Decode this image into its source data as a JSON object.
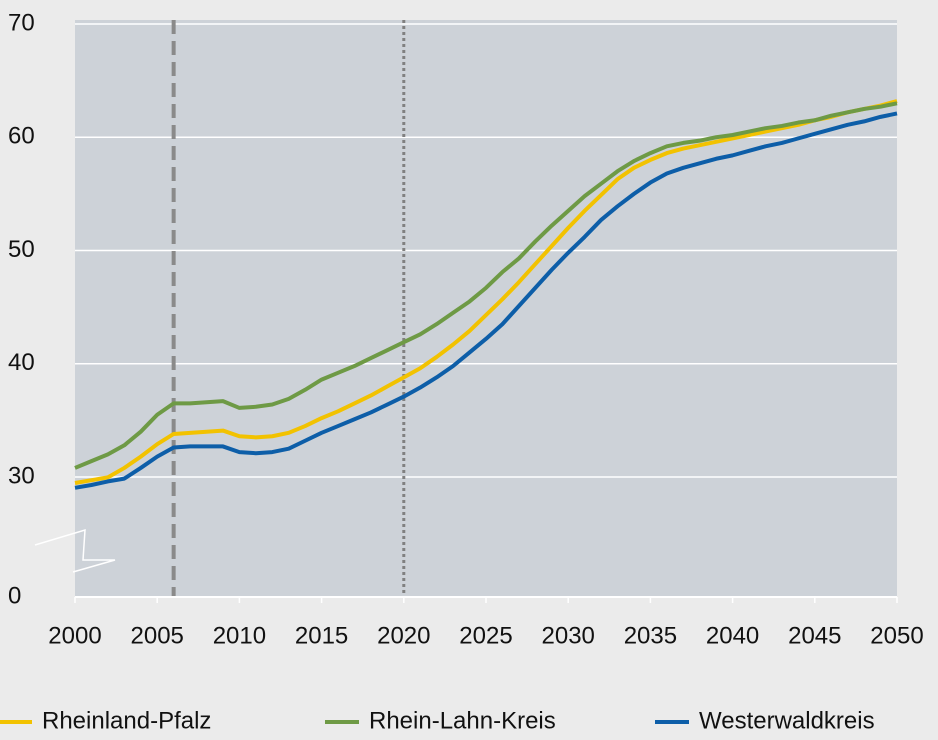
{
  "chart_data": {
    "type": "line",
    "x": [
      2000,
      2001,
      2002,
      2003,
      2004,
      2005,
      2006,
      2007,
      2008,
      2009,
      2010,
      2011,
      2012,
      2013,
      2014,
      2015,
      2016,
      2017,
      2018,
      2019,
      2020,
      2021,
      2022,
      2023,
      2024,
      2025,
      2026,
      2027,
      2028,
      2029,
      2030,
      2031,
      2032,
      2033,
      2034,
      2035,
      2036,
      2037,
      2038,
      2039,
      2040,
      2041,
      2042,
      2043,
      2044,
      2045,
      2046,
      2047,
      2048,
      2049,
      2050
    ],
    "series": [
      {
        "name": "Rheinland-Pfalz",
        "color": "#f2c200",
        "values": [
          28.5,
          29.2,
          29.9,
          30.8,
          31.8,
          32.9,
          33.8,
          33.9,
          34.0,
          34.1,
          33.6,
          33.5,
          33.6,
          33.9,
          34.5,
          35.2,
          35.8,
          36.5,
          37.2,
          38.0,
          38.8,
          39.6,
          40.6,
          41.7,
          42.9,
          44.3,
          45.7,
          47.2,
          48.8,
          50.4,
          52.0,
          53.5,
          54.9,
          56.3,
          57.3,
          58.0,
          58.6,
          59.0,
          59.3,
          59.6,
          59.9,
          60.2,
          60.5,
          60.8,
          61.1,
          61.5,
          61.8,
          62.2,
          62.5,
          62.8,
          63.2
        ]
      },
      {
        "name": "Rhein-Lahn-Kreis",
        "color": "#6e9a45",
        "values": [
          30.8,
          31.4,
          32.0,
          32.8,
          34.0,
          35.5,
          36.5,
          36.5,
          36.6,
          36.7,
          36.1,
          36.2,
          36.4,
          36.9,
          37.7,
          38.6,
          39.2,
          39.8,
          40.5,
          41.2,
          41.9,
          42.6,
          43.5,
          44.5,
          45.5,
          46.7,
          48.1,
          49.3,
          50.8,
          52.2,
          53.5,
          54.8,
          55.9,
          57.0,
          57.9,
          58.6,
          59.2,
          59.5,
          59.7,
          60.0,
          60.2,
          60.5,
          60.8,
          61.0,
          61.3,
          61.5,
          61.9,
          62.2,
          62.5,
          62.7,
          63.0
        ]
      },
      {
        "name": "Westerwaldkreis",
        "color": "#0d5ea8",
        "values": [
          27.3,
          28.0,
          28.9,
          29.6,
          30.8,
          31.8,
          32.6,
          32.7,
          32.7,
          32.7,
          32.2,
          32.1,
          32.2,
          32.5,
          33.2,
          33.9,
          34.5,
          35.1,
          35.7,
          36.4,
          37.1,
          37.9,
          38.8,
          39.8,
          41.0,
          42.2,
          43.5,
          45.1,
          46.7,
          48.3,
          49.8,
          51.2,
          52.7,
          53.9,
          55.0,
          56.0,
          56.8,
          57.3,
          57.7,
          58.1,
          58.4,
          58.8,
          59.2,
          59.5,
          59.9,
          60.3,
          60.7,
          61.1,
          61.4,
          61.8,
          62.1
        ]
      }
    ],
    "xlim": [
      2000,
      2050
    ],
    "xticks": [
      2000,
      2005,
      2010,
      2015,
      2020,
      2025,
      2030,
      2035,
      2040,
      2045,
      2050
    ],
    "ylim": [
      0,
      70
    ],
    "yticks": [
      0,
      30,
      40,
      50,
      60,
      70
    ],
    "axis_break": [
      0,
      30
    ],
    "vlines": [
      {
        "x": 2006,
        "style": "dashed"
      },
      {
        "x": 2020,
        "style": "dotted"
      }
    ],
    "grid": true,
    "legend": "bottom"
  }
}
